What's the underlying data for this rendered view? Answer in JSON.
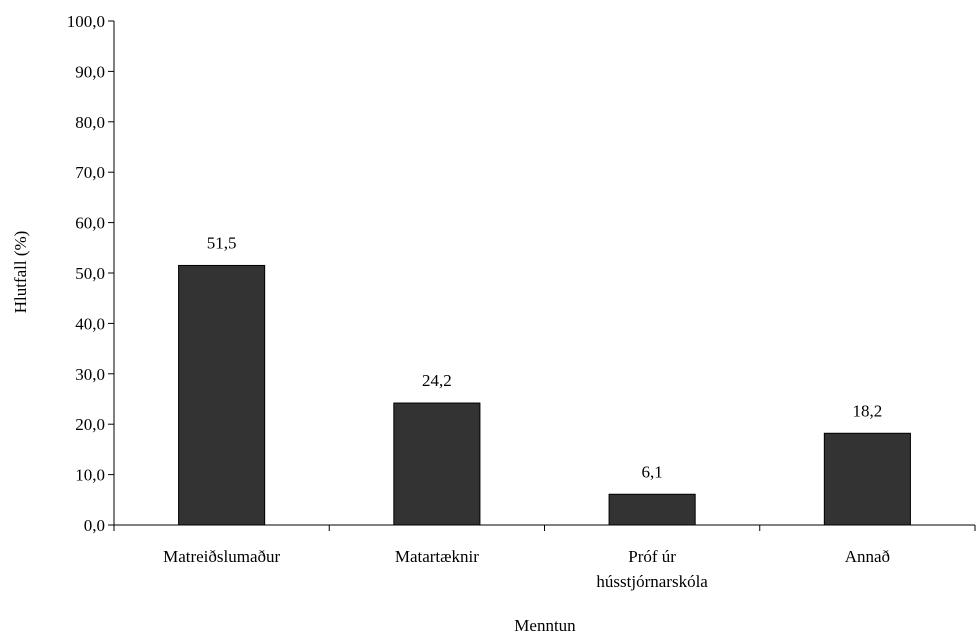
{
  "chart_data": {
    "type": "bar",
    "categories": [
      [
        "Matreiðslumaður"
      ],
      [
        "Matartæknir"
      ],
      [
        "Próf úr",
        "hússtjórnarskóla"
      ],
      [
        "Annað"
      ]
    ],
    "values": [
      51.5,
      24.2,
      6.1,
      18.2
    ],
    "data_labels": [
      "51,5",
      "24,2",
      "6,1",
      "18,2"
    ],
    "xlabel": "Menntun",
    "ylabel": "Hlutfall (%)",
    "ylim": [
      0,
      100
    ],
    "yticks": [
      0,
      10,
      20,
      30,
      40,
      50,
      60,
      70,
      80,
      90,
      100
    ],
    "ytick_labels": [
      "0,0",
      "10,0",
      "20,0",
      "30,0",
      "40,0",
      "50,0",
      "60,0",
      "70,0",
      "80,0",
      "90,0",
      "100,0"
    ],
    "grid": false,
    "legend": "none",
    "colors": {
      "bar": "#333333",
      "axis": "#000000"
    }
  }
}
